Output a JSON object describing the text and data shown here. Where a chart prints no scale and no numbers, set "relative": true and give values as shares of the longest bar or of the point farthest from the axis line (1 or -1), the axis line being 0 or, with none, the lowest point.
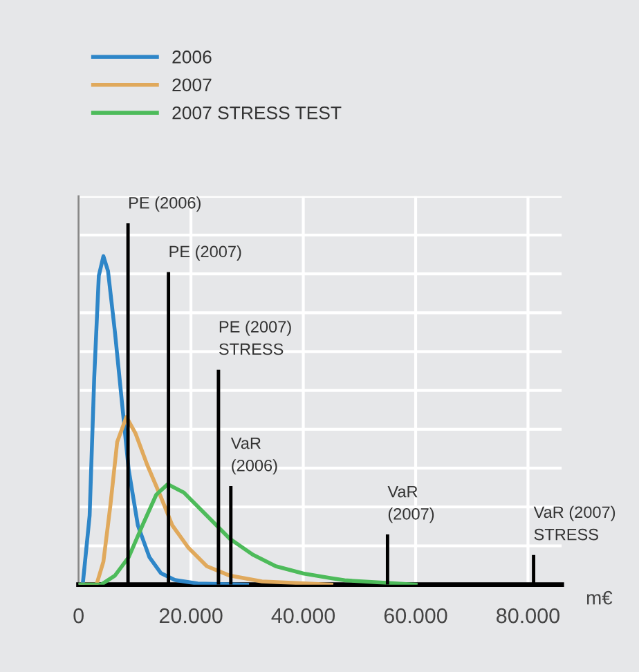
{
  "chart_data": {
    "type": "line",
    "relative": true,
    "xlabel": "m€",
    "xlim": [
      0,
      86000
    ],
    "xticks": [
      0,
      {
        "value": 20000,
        "label": "20.000"
      },
      {
        "value": 40000,
        "label": "40.000"
      },
      {
        "value": 60000,
        "label": "60.000"
      },
      {
        "value": 80000,
        "label": "80.000"
      }
    ],
    "grid": true,
    "legend": "top left",
    "tick_labels": "x",
    "series": [
      {
        "name": "2006",
        "color": "#2e86c8",
        "x": [
          0,
          736,
          1964,
          2782,
          3600,
          4418,
          5236,
          6463,
          7690,
          8917,
          10553,
          12600,
          14640,
          17100,
          21200,
          30000
        ],
        "values": [
          0,
          0,
          0.191,
          0.573,
          0.855,
          0.909,
          0.868,
          0.7,
          0.509,
          0.318,
          0.164,
          0.076,
          0.032,
          0.013,
          0.003,
          0
        ]
      },
      {
        "name": "2007",
        "color": "#e0a95c",
        "x": [
          0,
          3190,
          4420,
          5650,
          6870,
          8510,
          10150,
          12200,
          14640,
          16690,
          19550,
          22830,
          26920,
          32650,
          45000
        ],
        "values": [
          0,
          0,
          0.064,
          0.218,
          0.395,
          0.464,
          0.418,
          0.332,
          0.243,
          0.164,
          0.102,
          0.051,
          0.025,
          0.009,
          0
        ]
      },
      {
        "name": "2007 STRESS TEST",
        "color": "#4dbb5a",
        "x": [
          0,
          4010,
          6460,
          8920,
          11370,
          13830,
          15870,
          18730,
          22820,
          26920,
          31010,
          35100,
          40000,
          44920,
          47360,
          54700,
          60000
        ],
        "values": [
          0,
          0,
          0.025,
          0.076,
          0.164,
          0.249,
          0.278,
          0.255,
          0.191,
          0.127,
          0.083,
          0.051,
          0.031,
          0.018,
          0.012,
          0.005,
          0
        ]
      },
      {
        "type": "bar",
        "color": "#000000",
        "x": [
          8800,
          16000,
          24900,
          27100,
          55000,
          81000
        ],
        "values": [
          1.0,
          0.865,
          0.595,
          0.273,
          0.139,
          0.082
        ]
      }
    ],
    "annotations": [
      {
        "text": "PE (2006)",
        "x": 8800,
        "y": 1.0
      },
      {
        "text": "PE (2007)",
        "x": 16000,
        "y": 0.865
      },
      {
        "text": "PE (2007)\nSTRESS",
        "x": 24900,
        "y": 0.595
      },
      {
        "text": "VaR\n(2006)",
        "x": 27100,
        "y": 0.273
      },
      {
        "text": "VaR\n(2007)",
        "x": 55000,
        "y": 0.139
      },
      {
        "text": "VaR (2007)\nSTRESS",
        "x": 81000,
        "y": 0.082
      }
    ]
  }
}
